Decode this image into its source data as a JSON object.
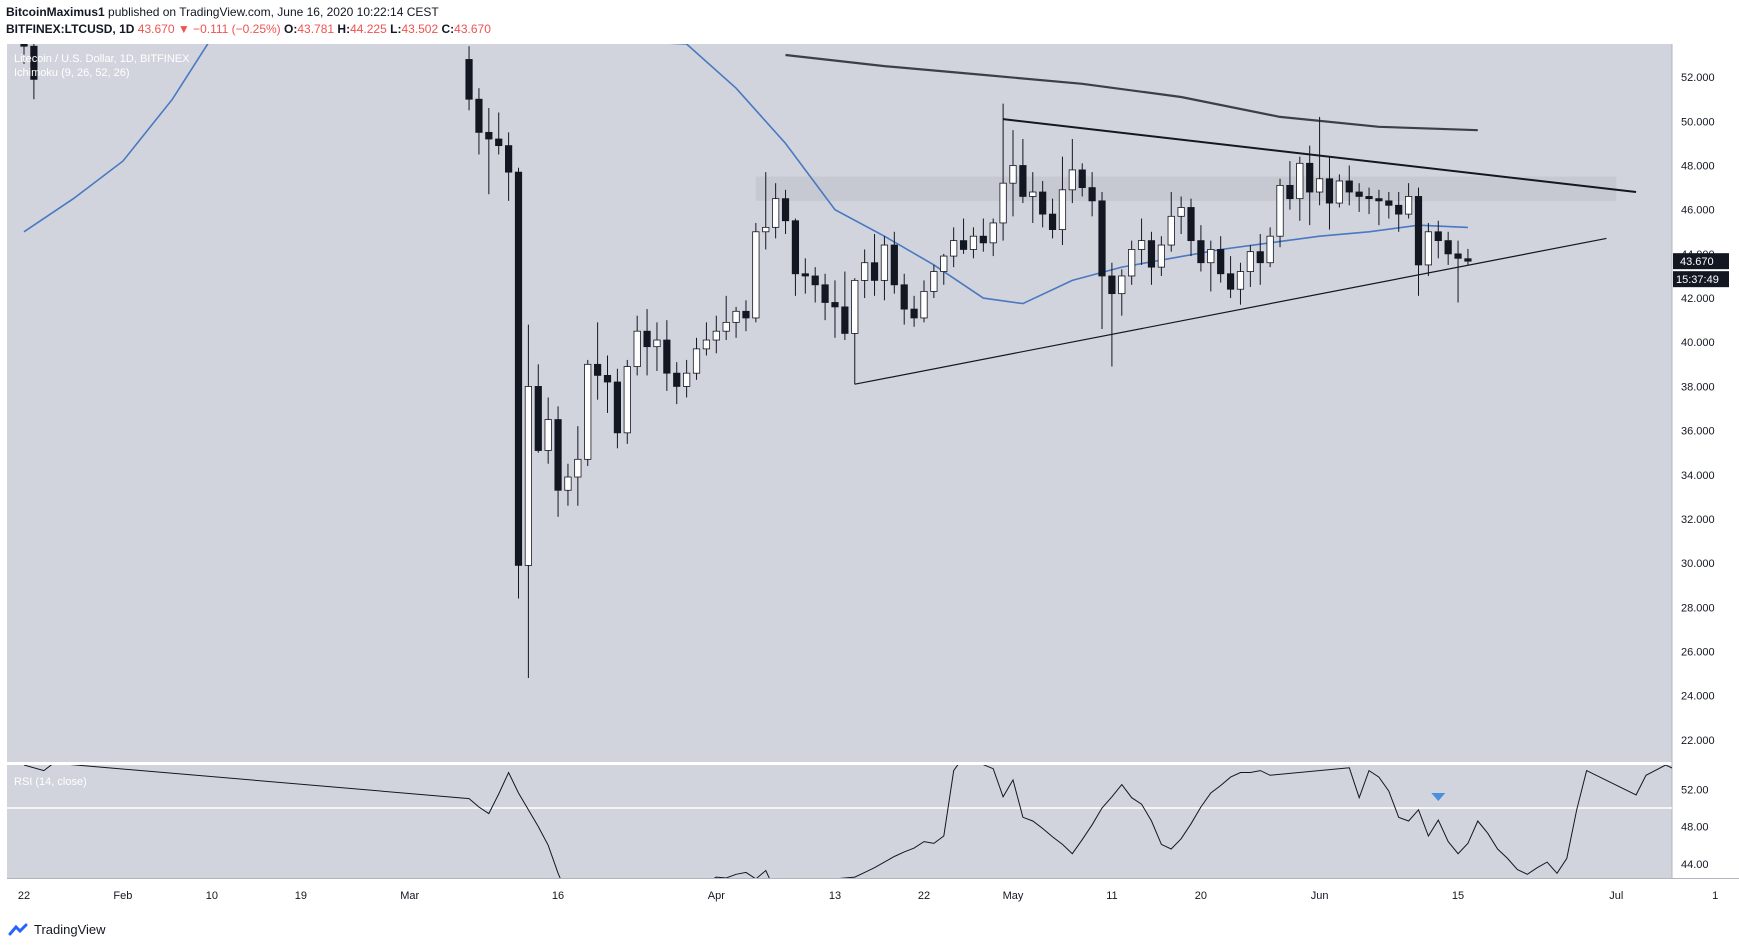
{
  "header": {
    "author": "BitcoinMaximus1",
    "published_text": "published on TradingView.com, June 16, 2020 10:22:14 CEST"
  },
  "ohlc": {
    "symbol": "BITFINEX:LTCUSD, 1D",
    "last": "43.670",
    "change": "▼ −0.111 (−0.25%)",
    "o_label": "O:",
    "o": "43.781",
    "h_label": "H:",
    "h": "44.225",
    "l_label": "L:",
    "l": "43.502",
    "c_label": "C:",
    "c": "43.670"
  },
  "legend": {
    "series_title": "Litecoin / U.S. Dollar, 1D, BITFINEX",
    "indicator": "Ichimoku (9, 26, 52, 26)",
    "rsi": "RSI (14, close)"
  },
  "price_badge": "43.670",
  "countdown_badge": "15:37:49",
  "footer": {
    "brand": "TradingView"
  },
  "colors": {
    "pane_bg": "#d1d4dc",
    "up_body": "#ffffff",
    "down_body": "#131722",
    "ma_fast": "#4a78c2",
    "ma_slow": "#3c3f46",
    "rsi_line": "#131722",
    "resistance_box": "#c4c7cf",
    "marker": "#4a8fe0"
  },
  "chart_data": {
    "type": "candlestick",
    "symbol": "BITFINEX:LTCUSD",
    "interval": "1D",
    "ylim": [
      21,
      53.5
    ],
    "price_ticks": [
      "52.000",
      "50.000",
      "48.000",
      "46.000",
      "44.000",
      "42.000",
      "40.000",
      "38.000",
      "36.000",
      "34.000",
      "32.000",
      "30.000",
      "28.000",
      "26.000",
      "24.000",
      "22.000"
    ],
    "x_ticks": [
      "22",
      "Feb",
      "10",
      "19",
      "Mar",
      "16",
      "Apr",
      "13",
      "22",
      "May",
      "11",
      "20",
      "Jun",
      "15",
      "Jul",
      "1"
    ],
    "candles": [
      [
        "2020-01-22",
        53.8,
        54.2,
        52.6,
        53.4
      ],
      [
        "2020-01-23",
        53.4,
        53.6,
        51.0,
        51.9
      ],
      [
        "2020-03-07",
        52.8,
        53.4,
        50.5,
        51.0
      ],
      [
        "2020-03-08",
        51.0,
        51.5,
        48.5,
        49.5
      ],
      [
        "2020-03-09",
        49.5,
        50.6,
        46.7,
        49.2
      ],
      [
        "2020-03-10",
        49.2,
        50.4,
        48.5,
        48.9
      ],
      [
        "2020-03-11",
        48.9,
        49.5,
        46.4,
        47.7
      ],
      [
        "2020-03-12",
        47.7,
        47.9,
        28.4,
        29.9
      ],
      [
        "2020-03-13",
        29.9,
        40.8,
        24.8,
        38.0
      ],
      [
        "2020-03-14",
        38.0,
        39.0,
        35.0,
        35.1
      ],
      [
        "2020-03-15",
        35.1,
        37.5,
        34.5,
        36.5
      ],
      [
        "2020-03-16",
        36.5,
        37.1,
        32.1,
        33.3
      ],
      [
        "2020-03-17",
        33.3,
        34.5,
        32.6,
        33.9
      ],
      [
        "2020-03-18",
        33.9,
        36.2,
        32.6,
        34.7
      ],
      [
        "2020-03-19",
        34.7,
        39.2,
        34.4,
        39.0
      ],
      [
        "2020-03-20",
        39.0,
        40.9,
        37.4,
        38.5
      ],
      [
        "2020-03-21",
        38.5,
        39.4,
        36.8,
        38.2
      ],
      [
        "2020-03-22",
        38.2,
        38.8,
        35.2,
        35.9
      ],
      [
        "2020-03-23",
        35.9,
        39.2,
        35.4,
        38.9
      ],
      [
        "2020-03-24",
        38.9,
        41.2,
        38.5,
        40.5
      ],
      [
        "2020-03-25",
        40.5,
        41.5,
        38.5,
        39.8
      ],
      [
        "2020-03-26",
        39.8,
        40.9,
        38.7,
        40.1
      ],
      [
        "2020-03-27",
        40.1,
        41.0,
        37.8,
        38.6
      ],
      [
        "2020-03-28",
        38.6,
        39.1,
        37.2,
        38.0
      ],
      [
        "2020-03-29",
        38.0,
        39.2,
        37.5,
        38.6
      ],
      [
        "2020-03-30",
        38.6,
        40.2,
        38.3,
        39.7
      ],
      [
        "2020-03-31",
        39.7,
        40.9,
        39.4,
        40.1
      ],
      [
        "2020-04-01",
        40.1,
        41.2,
        39.5,
        40.5
      ],
      [
        "2020-04-02",
        40.5,
        42.1,
        40.1,
        40.9
      ],
      [
        "2020-04-03",
        40.9,
        41.6,
        40.2,
        41.4
      ],
      [
        "2020-04-04",
        41.4,
        41.9,
        40.5,
        41.1
      ],
      [
        "2020-04-05",
        41.1,
        45.4,
        40.9,
        45.0
      ],
      [
        "2020-04-06",
        45.0,
        47.7,
        44.2,
        45.2
      ],
      [
        "2020-04-07",
        45.2,
        47.2,
        44.7,
        46.5
      ],
      [
        "2020-04-08",
        46.5,
        46.9,
        44.9,
        45.5
      ],
      [
        "2020-04-09",
        45.5,
        45.6,
        42.1,
        43.1
      ],
      [
        "2020-04-10",
        43.1,
        43.8,
        42.2,
        43.0
      ],
      [
        "2020-04-11",
        43.0,
        43.4,
        41.8,
        42.6
      ],
      [
        "2020-04-12",
        42.6,
        43.1,
        41.0,
        41.8
      ],
      [
        "2020-04-13",
        41.8,
        42.8,
        40.2,
        41.6
      ],
      [
        "2020-04-14",
        41.6,
        43.2,
        40.1,
        40.4
      ],
      [
        "2020-04-15",
        40.4,
        42.9,
        38.1,
        42.8
      ],
      [
        "2020-04-16",
        42.8,
        44.2,
        42.0,
        43.6
      ],
      [
        "2020-04-17",
        43.6,
        44.9,
        42.1,
        42.8
      ],
      [
        "2020-04-18",
        42.8,
        44.8,
        41.9,
        44.4
      ],
      [
        "2020-04-19",
        44.4,
        45.0,
        42.2,
        42.6
      ],
      [
        "2020-04-20",
        42.6,
        43.1,
        40.8,
        41.5
      ],
      [
        "2020-04-21",
        41.5,
        42.1,
        40.7,
        41.1
      ],
      [
        "2020-04-22",
        41.1,
        42.8,
        40.9,
        42.3
      ],
      [
        "2020-04-23",
        42.3,
        43.5,
        42.0,
        43.2
      ],
      [
        "2020-04-24",
        43.2,
        44.0,
        42.6,
        43.9
      ],
      [
        "2020-04-25",
        43.9,
        45.2,
        43.4,
        44.6
      ],
      [
        "2020-04-26",
        44.6,
        45.6,
        44.0,
        44.2
      ],
      [
        "2020-04-27",
        44.2,
        45.2,
        43.8,
        44.8
      ],
      [
        "2020-04-28",
        44.8,
        45.6,
        44.1,
        44.5
      ],
      [
        "2020-04-29",
        44.5,
        45.6,
        43.9,
        45.4
      ],
      [
        "2020-04-30",
        45.4,
        50.8,
        44.6,
        47.2
      ],
      [
        "2020-05-01",
        47.2,
        49.6,
        45.7,
        48.0
      ],
      [
        "2020-05-02",
        48.0,
        49.2,
        46.3,
        46.6
      ],
      [
        "2020-05-03",
        46.6,
        47.7,
        45.4,
        46.8
      ],
      [
        "2020-05-04",
        46.8,
        47.3,
        45.2,
        45.8
      ],
      [
        "2020-05-05",
        45.8,
        46.5,
        44.7,
        45.1
      ],
      [
        "2020-05-06",
        45.1,
        48.4,
        44.4,
        46.9
      ],
      [
        "2020-05-07",
        46.9,
        49.2,
        46.3,
        47.8
      ],
      [
        "2020-05-08",
        47.8,
        48.1,
        46.6,
        47.0
      ],
      [
        "2020-05-09",
        47.0,
        47.7,
        45.7,
        46.4
      ],
      [
        "2020-05-10",
        46.4,
        46.8,
        40.6,
        43.0
      ],
      [
        "2020-05-11",
        43.0,
        43.6,
        38.9,
        42.2
      ],
      [
        "2020-05-12",
        42.2,
        43.3,
        41.2,
        43.0
      ],
      [
        "2020-05-13",
        43.0,
        44.6,
        42.6,
        44.2
      ],
      [
        "2020-05-14",
        44.2,
        45.6,
        43.5,
        44.6
      ],
      [
        "2020-05-15",
        44.6,
        45.0,
        42.6,
        43.4
      ],
      [
        "2020-05-16",
        43.4,
        44.8,
        43.0,
        44.4
      ],
      [
        "2020-05-17",
        44.4,
        46.8,
        44.1,
        45.7
      ],
      [
        "2020-05-18",
        45.7,
        46.6,
        44.9,
        46.1
      ],
      [
        "2020-05-19",
        46.1,
        46.5,
        43.9,
        44.6
      ],
      [
        "2020-05-20",
        44.6,
        45.3,
        43.2,
        43.6
      ],
      [
        "2020-05-21",
        43.6,
        44.6,
        42.3,
        44.2
      ],
      [
        "2020-05-22",
        44.2,
        44.8,
        42.7,
        43.1
      ],
      [
        "2020-05-23",
        43.1,
        43.9,
        42.0,
        42.4
      ],
      [
        "2020-05-24",
        42.4,
        43.6,
        41.7,
        43.2
      ],
      [
        "2020-05-25",
        43.2,
        44.4,
        42.5,
        44.1
      ],
      [
        "2020-05-26",
        44.1,
        44.9,
        42.6,
        43.6
      ],
      [
        "2020-05-27",
        43.6,
        45.2,
        43.4,
        44.8
      ],
      [
        "2020-05-28",
        44.8,
        47.4,
        44.3,
        47.1
      ],
      [
        "2020-05-29",
        47.1,
        48.2,
        46.0,
        46.5
      ],
      [
        "2020-05-30",
        46.5,
        48.4,
        45.5,
        48.1
      ],
      [
        "2020-05-31",
        48.1,
        48.9,
        45.3,
        46.8
      ],
      [
        "2020-06-01",
        46.8,
        50.2,
        46.2,
        47.4
      ],
      [
        "2020-06-02",
        47.4,
        48.4,
        45.1,
        46.3
      ],
      [
        "2020-06-03",
        46.3,
        47.6,
        46.1,
        47.3
      ],
      [
        "2020-06-04",
        47.3,
        48.0,
        46.2,
        46.8
      ],
      [
        "2020-06-05",
        46.8,
        47.2,
        45.9,
        46.6
      ],
      [
        "2020-06-06",
        46.6,
        47.0,
        45.8,
        46.5
      ],
      [
        "2020-06-07",
        46.5,
        46.9,
        45.3,
        46.4
      ],
      [
        "2020-06-08",
        46.4,
        46.8,
        45.6,
        46.2
      ],
      [
        "2020-06-09",
        46.2,
        46.8,
        45.0,
        45.8
      ],
      [
        "2020-06-10",
        45.8,
        47.2,
        45.6,
        46.6
      ],
      [
        "2020-06-11",
        46.6,
        47.0,
        42.1,
        43.5
      ],
      [
        "2020-06-12",
        43.5,
        45.4,
        43.0,
        45.0
      ],
      [
        "2020-06-13",
        45.0,
        45.5,
        43.8,
        44.6
      ],
      [
        "2020-06-14",
        44.6,
        45.0,
        43.5,
        44.0
      ],
      [
        "2020-06-15",
        44.0,
        44.6,
        41.8,
        43.8
      ],
      [
        "2020-06-16",
        43.78,
        44.225,
        43.502,
        43.67
      ]
    ],
    "ma_fast": [
      [
        "2020-01-22",
        45.0
      ],
      [
        "2020-01-27",
        46.5
      ],
      [
        "2020-02-01",
        48.2
      ],
      [
        "2020-02-06",
        51.0
      ],
      [
        "2020-02-11",
        54.5
      ],
      [
        "2020-03-29",
        53.5
      ],
      [
        "2020-04-03",
        51.5
      ],
      [
        "2020-04-08",
        49.0
      ],
      [
        "2020-04-13",
        46.0
      ],
      [
        "2020-04-18",
        44.8
      ],
      [
        "2020-04-23",
        43.5
      ],
      [
        "2020-04-28",
        42.0
      ],
      [
        "2020-05-02",
        41.75
      ],
      [
        "2020-05-07",
        42.8
      ],
      [
        "2020-05-12",
        43.4
      ],
      [
        "2020-05-17",
        43.8
      ],
      [
        "2020-05-22",
        44.2
      ],
      [
        "2020-05-27",
        44.5
      ],
      [
        "2020-06-01",
        44.8
      ],
      [
        "2020-06-06",
        45.0
      ],
      [
        "2020-06-11",
        45.3
      ],
      [
        "2020-06-16",
        45.2
      ]
    ],
    "ma_slow": [
      [
        "2020-04-08",
        53.0
      ],
      [
        "2020-04-18",
        52.5
      ],
      [
        "2020-04-28",
        52.1
      ],
      [
        "2020-05-08",
        51.7
      ],
      [
        "2020-05-18",
        51.1
      ],
      [
        "2020-05-28",
        50.2
      ],
      [
        "2020-06-07",
        49.75
      ],
      [
        "2020-06-17",
        49.6
      ]
    ],
    "rsi_ylim": [
      42.5,
      54.6
    ],
    "rsi_ticks": [
      "52.00",
      "48.00",
      "44.00"
    ],
    "rsi_level": 50,
    "rsi": [
      [
        "2020-01-22",
        54.6
      ],
      [
        "2020-01-24",
        54.0
      ],
      [
        "2020-01-25",
        54.8
      ],
      [
        "2020-03-07",
        51.0
      ],
      [
        "2020-03-08",
        50.1
      ],
      [
        "2020-03-09",
        49.4
      ],
      [
        "2020-03-10",
        51.5
      ],
      [
        "2020-03-11",
        53.8
      ],
      [
        "2020-03-12",
        51.6
      ],
      [
        "2020-03-13",
        49.8
      ],
      [
        "2020-03-14",
        48.0
      ],
      [
        "2020-03-15",
        46.0
      ],
      [
        "2020-03-16",
        43.0
      ],
      [
        "2020-03-17",
        40.5
      ],
      [
        "2020-03-18",
        38.0
      ],
      [
        "2020-03-30",
        40.0
      ],
      [
        "2020-03-31",
        42.0
      ],
      [
        "2020-04-01",
        42.6
      ],
      [
        "2020-04-02",
        42.5
      ],
      [
        "2020-04-03",
        42.9
      ],
      [
        "2020-04-04",
        43.1
      ],
      [
        "2020-04-05",
        42.4
      ],
      [
        "2020-04-06",
        43.3
      ],
      [
        "2020-04-07",
        41.0
      ],
      [
        "2020-04-12",
        42.0
      ],
      [
        "2020-04-13",
        42.4
      ],
      [
        "2020-04-15",
        42.6
      ],
      [
        "2020-04-16",
        43.1
      ],
      [
        "2020-04-17",
        43.6
      ],
      [
        "2020-04-18",
        44.2
      ],
      [
        "2020-04-19",
        44.8
      ],
      [
        "2020-04-20",
        45.3
      ],
      [
        "2020-04-21",
        45.7
      ],
      [
        "2020-04-22",
        46.4
      ],
      [
        "2020-04-23",
        46.2
      ],
      [
        "2020-04-24",
        47.0
      ],
      [
        "2020-04-25",
        54.0
      ],
      [
        "2020-04-26",
        55.5
      ],
      [
        "2020-04-29",
        54.2
      ],
      [
        "2020-04-30",
        51.2
      ],
      [
        "2020-05-01",
        53.0
      ],
      [
        "2020-05-02",
        49.0
      ],
      [
        "2020-05-03",
        48.6
      ],
      [
        "2020-05-04",
        47.8
      ],
      [
        "2020-05-05",
        46.9
      ],
      [
        "2020-05-06",
        46.1
      ],
      [
        "2020-05-07",
        45.1
      ],
      [
        "2020-05-08",
        46.6
      ],
      [
        "2020-05-09",
        48.2
      ],
      [
        "2020-05-10",
        50.0
      ],
      [
        "2020-05-11",
        51.2
      ],
      [
        "2020-05-12",
        52.5
      ],
      [
        "2020-05-13",
        51.1
      ],
      [
        "2020-05-14",
        50.4
      ],
      [
        "2020-05-15",
        48.6
      ],
      [
        "2020-05-16",
        46.1
      ],
      [
        "2020-05-17",
        45.6
      ],
      [
        "2020-05-18",
        46.7
      ],
      [
        "2020-05-19",
        48.3
      ],
      [
        "2020-05-20",
        50.1
      ],
      [
        "2020-05-21",
        51.6
      ],
      [
        "2020-05-22",
        52.4
      ],
      [
        "2020-05-23",
        53.3
      ],
      [
        "2020-05-24",
        53.8
      ],
      [
        "2020-05-25",
        53.8
      ],
      [
        "2020-05-26",
        54.0
      ],
      [
        "2020-05-27",
        53.5
      ],
      [
        "2020-06-04",
        54.3
      ],
      [
        "2020-06-05",
        51.1
      ],
      [
        "2020-06-06",
        54.0
      ],
      [
        "2020-06-07",
        53.3
      ],
      [
        "2020-06-08",
        51.8
      ],
      [
        "2020-06-09",
        49.0
      ],
      [
        "2020-06-10",
        48.6
      ],
      [
        "2020-06-11",
        49.8
      ],
      [
        "2020-06-12",
        47.0
      ],
      [
        "2020-06-13",
        48.7
      ],
      [
        "2020-06-14",
        46.4
      ],
      [
        "2020-06-15",
        45.1
      ],
      [
        "2020-06-16",
        46.2
      ],
      [
        "2020-06-17",
        48.6
      ],
      [
        "2020-06-18",
        47.3
      ],
      [
        "2020-06-19",
        45.6
      ],
      [
        "2020-06-20",
        44.6
      ],
      [
        "2020-06-21",
        43.4
      ],
      [
        "2020-06-22",
        42.9
      ],
      [
        "2020-06-23",
        43.6
      ],
      [
        "2020-06-24",
        44.2
      ],
      [
        "2020-06-25",
        43.0
      ],
      [
        "2020-06-26",
        44.6
      ],
      [
        "2020-06-27",
        49.8
      ],
      [
        "2020-06-28",
        54.0
      ],
      [
        "2020-07-03",
        51.4
      ],
      [
        "2020-07-04",
        53.5
      ],
      [
        "2020-07-06",
        54.6
      ],
      [
        "2020-07-08",
        53.6
      ],
      [
        "2020-07-10",
        52.7
      ],
      [
        "2020-07-11",
        51.9
      ],
      [
        "2020-07-12",
        51.2
      ],
      [
        "2020-07-13",
        50.6
      ],
      [
        "2020-07-15",
        43.2
      ],
      [
        "2020-07-16",
        47.9
      ],
      [
        "2020-07-17",
        49.0
      ],
      [
        "2020-07-18",
        47.7
      ],
      [
        "2020-07-19",
        45.8
      ],
      [
        "2020-07-20",
        45.2
      ],
      [
        "2020-07-21",
        44.9
      ]
    ],
    "trendlines": [
      {
        "name": "descending-resistance",
        "from": [
          "2020-04-30",
          50.1
        ],
        "to": [
          "2020-07-03",
          46.8
        ]
      },
      {
        "name": "ascending-support",
        "from": [
          "2020-04-15",
          38.1
        ],
        "to": [
          "2020-06-30",
          44.7
        ]
      }
    ],
    "resistance_zone": {
      "from": "2020-04-05",
      "to": "2020-07-01",
      "low": 46.4,
      "high": 47.5
    },
    "marker": {
      "date": "2020-06-13",
      "pane": "rsi",
      "shape": "triangle-down"
    }
  }
}
